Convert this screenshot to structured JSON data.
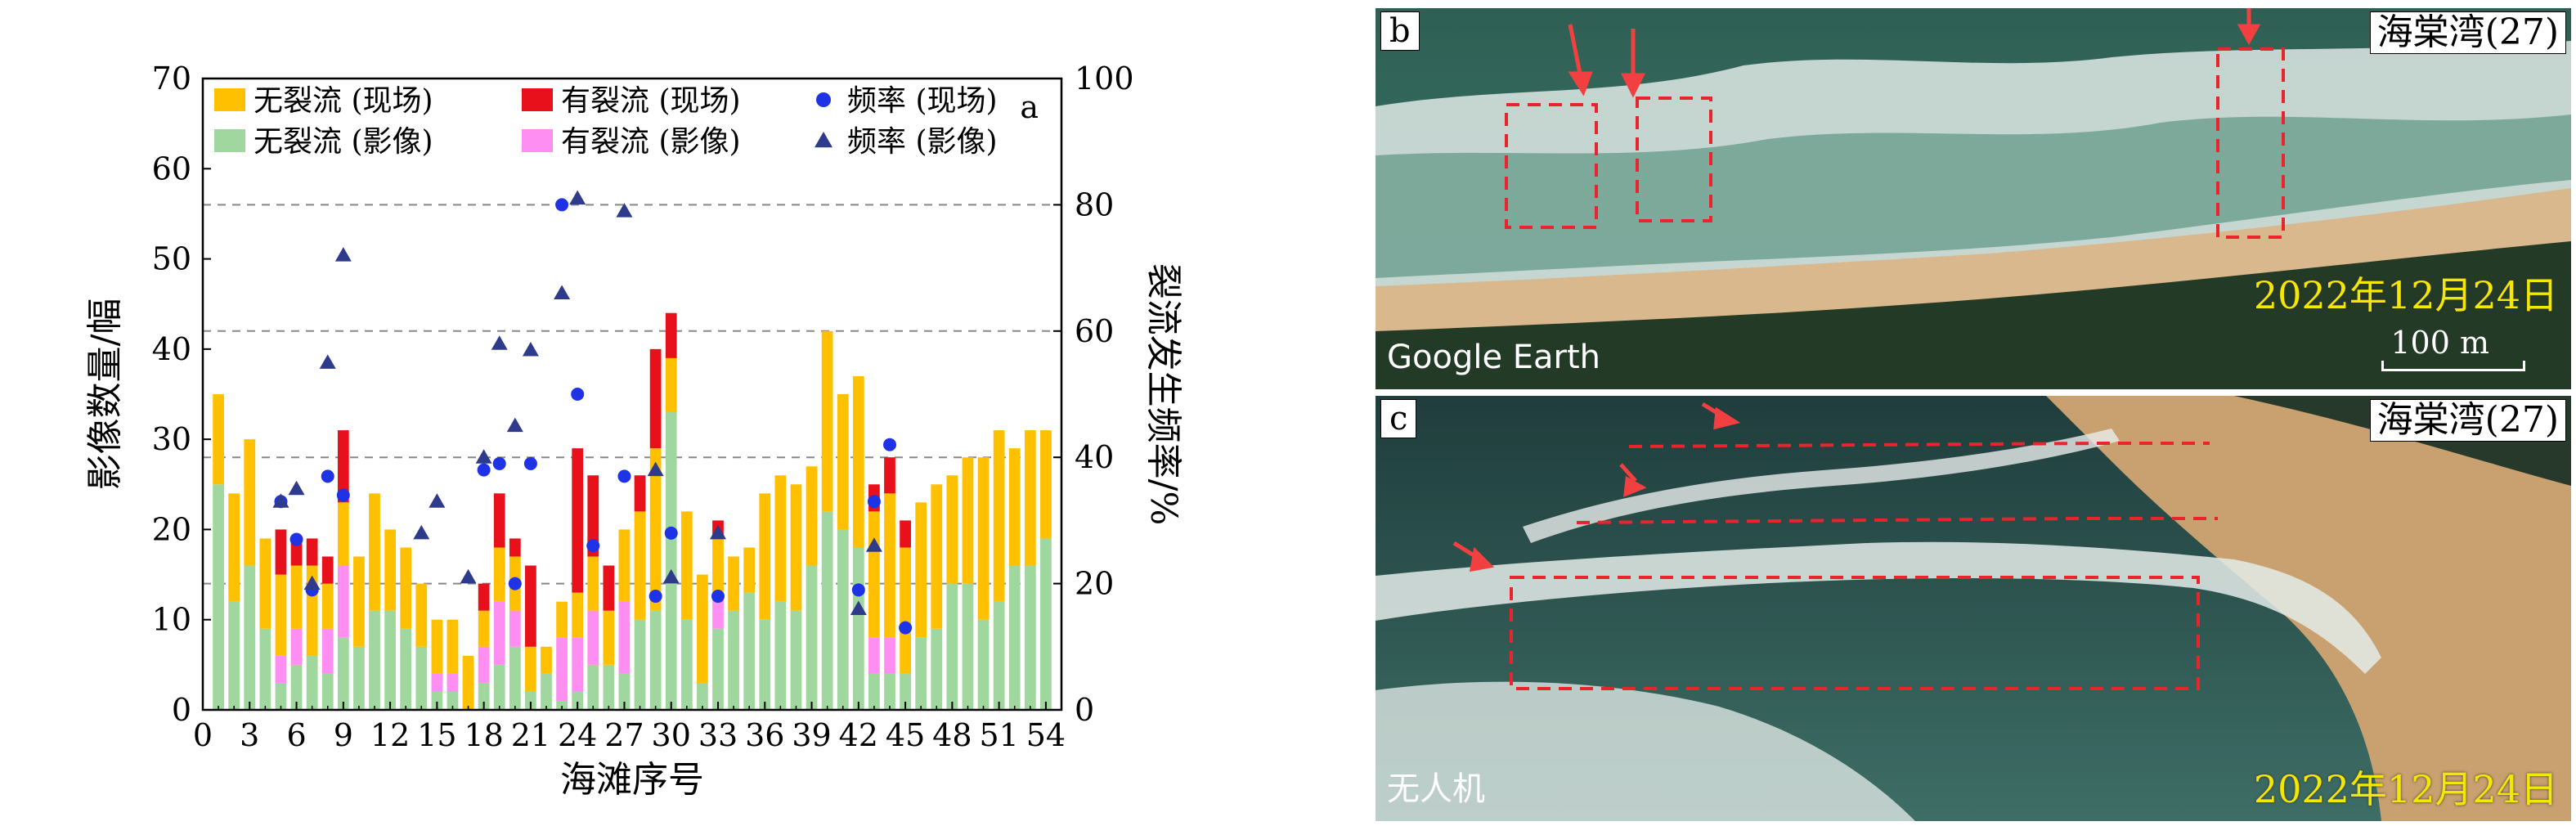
{
  "chart_data": {
    "type": "bar",
    "panel_label": "a",
    "xlabel": "海滩序号",
    "ylabel": "影像数量/幅",
    "y2label": "裂流发生频率/%",
    "xlim": [
      0,
      55
    ],
    "ylim": [
      0,
      70
    ],
    "y2lim": [
      0,
      100
    ],
    "x_ticks": [
      0,
      3,
      6,
      9,
      12,
      15,
      18,
      21,
      24,
      27,
      30,
      33,
      36,
      39,
      42,
      45,
      48,
      51,
      54
    ],
    "y_ticks": [
      0,
      10,
      20,
      30,
      40,
      50,
      60,
      70
    ],
    "y2_ticks": [
      0,
      20,
      40,
      60,
      80,
      100
    ],
    "grid_y2": [
      20,
      40,
      60,
      80
    ],
    "legend": [
      "无裂流 (现场)",
      "有裂流 (现场)",
      "频率 (现场)",
      "无裂流 (影像)",
      "有裂流 (影像)",
      "频率 (影像)"
    ],
    "colors": {
      "field_no": "#ffc000",
      "field_yes": "#e8101a",
      "img_no": "#9fd79e",
      "img_yes": "#ff8ef2",
      "marker_field": "#1f33e6",
      "marker_img": "#2e3a8c"
    },
    "x": [
      1,
      2,
      3,
      4,
      5,
      6,
      7,
      8,
      9,
      10,
      11,
      12,
      13,
      14,
      15,
      16,
      17,
      18,
      19,
      20,
      21,
      22,
      23,
      24,
      25,
      26,
      27,
      28,
      29,
      30,
      31,
      32,
      33,
      34,
      35,
      36,
      37,
      38,
      39,
      40,
      41,
      42,
      43,
      44,
      45,
      46,
      47,
      48,
      49,
      50,
      51,
      52,
      53,
      54
    ],
    "series": [
      {
        "name": "无裂流 (影像)",
        "values": [
          25,
          12,
          16,
          9,
          3,
          5,
          6,
          4,
          8,
          7,
          11,
          11,
          9,
          7,
          2,
          2,
          0,
          3,
          5,
          7,
          2,
          4,
          1,
          2,
          5,
          5,
          4,
          10,
          11,
          33,
          10,
          3,
          9,
          11,
          13,
          10,
          12,
          11,
          16,
          22,
          20,
          18,
          4,
          4,
          4,
          8,
          9,
          14,
          14,
          10,
          12,
          16,
          16,
          19
        ]
      },
      {
        "name": "有裂流 (影像)",
        "values": [
          0,
          0,
          0,
          0,
          3,
          4,
          0,
          5,
          8,
          0,
          0,
          0,
          0,
          0,
          2,
          2,
          0,
          4,
          7,
          4,
          0,
          0,
          7,
          6,
          6,
          0,
          8,
          0,
          0,
          0,
          0,
          0,
          4,
          0,
          0,
          0,
          0,
          0,
          0,
          0,
          0,
          0,
          4,
          4,
          0,
          0,
          0,
          0,
          0,
          0,
          0,
          0,
          0,
          0
        ]
      },
      {
        "name": "无裂流 (现场)",
        "values": [
          10,
          12,
          14,
          10,
          9,
          7,
          10,
          5,
          7,
          10,
          13,
          9,
          9,
          7,
          6,
          6,
          6,
          4,
          6,
          6,
          5,
          3,
          4,
          5,
          6,
          6,
          8,
          12,
          18,
          6,
          12,
          12,
          6,
          6,
          5,
          14,
          14,
          14,
          11,
          20,
          15,
          19,
          14,
          16,
          14,
          15,
          16,
          12,
          14,
          18,
          19,
          13,
          15,
          12
        ]
      },
      {
        "name": "有裂流 (现场)",
        "values": [
          0,
          0,
          0,
          0,
          5,
          3,
          3,
          3,
          8,
          0,
          0,
          0,
          0,
          0,
          0,
          0,
          0,
          3,
          6,
          2,
          9,
          0,
          0,
          16,
          9,
          5,
          0,
          4,
          11,
          5,
          0,
          0,
          2,
          0,
          0,
          0,
          0,
          0,
          0,
          0,
          0,
          0,
          3,
          4,
          3,
          0,
          0,
          0,
          0,
          0,
          0,
          0,
          0,
          0
        ]
      },
      {
        "name": "频率 (现场)",
        "x": [
          5,
          6,
          7,
          8,
          9,
          18,
          19,
          20,
          21,
          23,
          24,
          25,
          27,
          29,
          30,
          33,
          42,
          43,
          44,
          45
        ],
        "values": [
          33,
          27,
          19,
          37,
          34,
          38,
          39,
          20,
          39,
          80,
          50,
          26,
          37,
          18,
          28,
          18,
          19,
          33,
          42,
          13
        ]
      },
      {
        "name": "频率 (影像)",
        "x": [
          5,
          6,
          7,
          8,
          9,
          14,
          15,
          17,
          18,
          19,
          20,
          21,
          23,
          24,
          27,
          29,
          30,
          33,
          42,
          43
        ],
        "values": [
          33,
          35,
          20,
          55,
          72,
          28,
          33,
          21,
          40,
          58,
          45,
          57,
          66,
          81,
          79,
          38,
          21,
          28,
          16,
          26
        ]
      }
    ]
  },
  "panel_b": {
    "letter": "b",
    "place": "海棠湾(27)",
    "date": "2022年12月24日",
    "source": "Google Earth",
    "scale": "100 m"
  },
  "panel_c": {
    "letter": "c",
    "place": "海棠湾(27)",
    "date": "2022年12月24日",
    "source": "无人机"
  }
}
